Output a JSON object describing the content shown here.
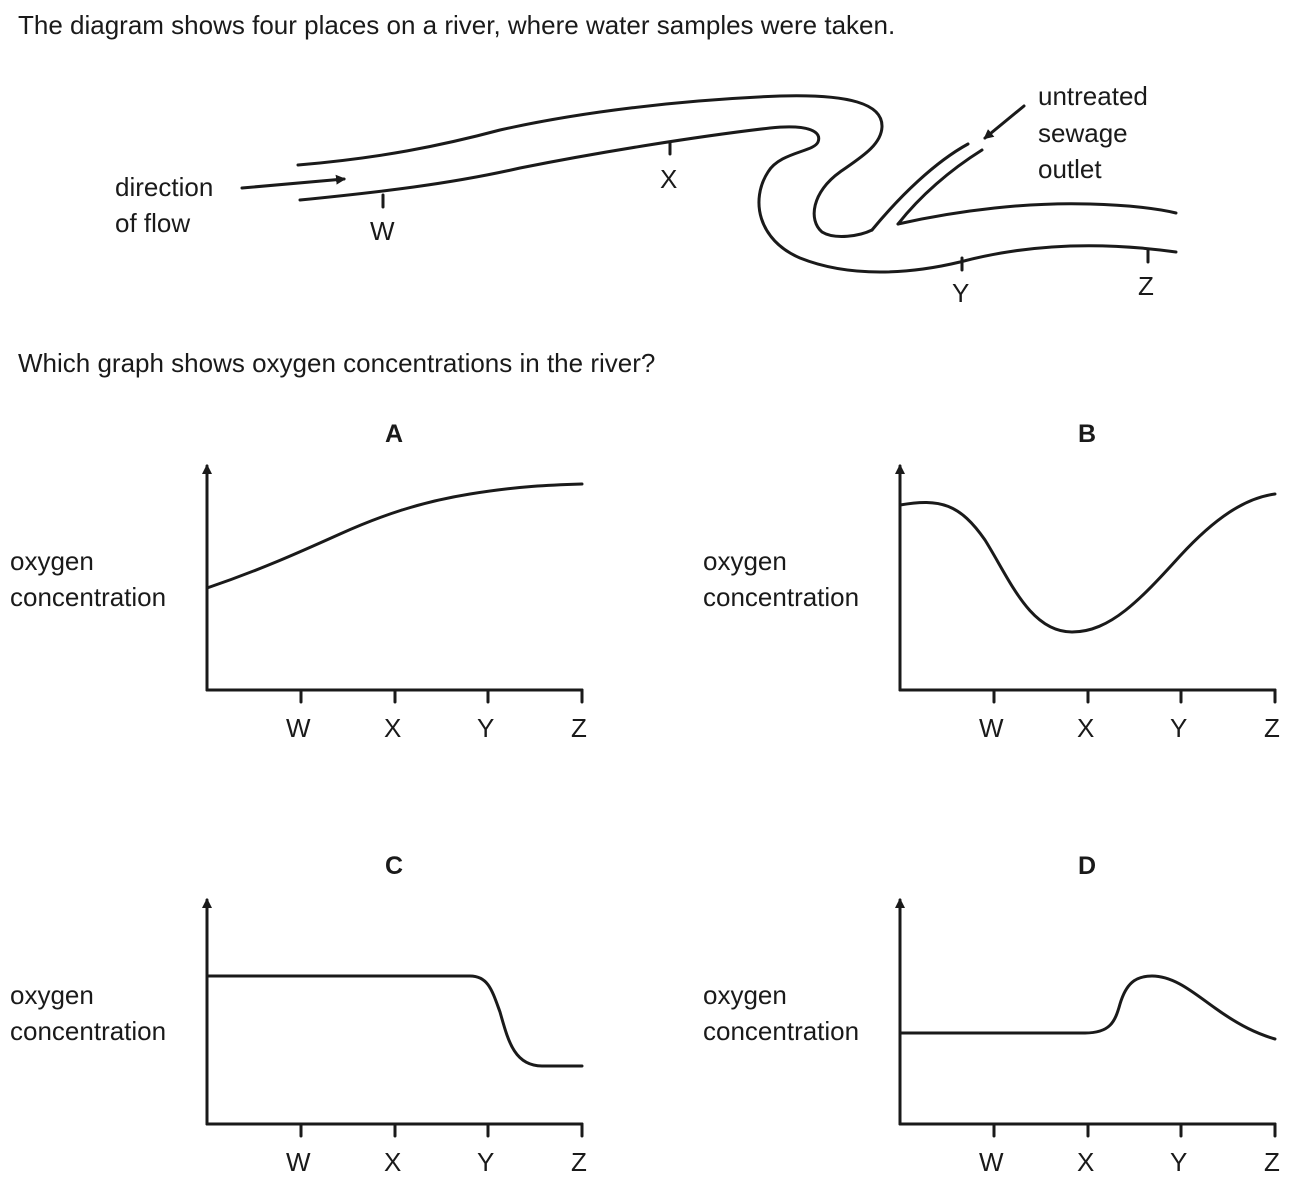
{
  "intro_text": "The diagram shows four places on a river, where water samples were taken.",
  "question_text": "Which graph shows oxygen concentrations in the river?",
  "diagram": {
    "flow_label_line1": "direction",
    "flow_label_line2": "of flow",
    "outlet_label_line1": "untreated",
    "outlet_label_line2": "sewage",
    "outlet_label_line3": "outlet",
    "site_w": "W",
    "site_x": "X",
    "site_y": "Y",
    "site_z": "Z"
  },
  "graphs": [
    {
      "option": "A",
      "ylabel_line1": "oxygen",
      "ylabel_line2": "concentration",
      "x_ticks": [
        "W",
        "X",
        "Y",
        "Z"
      ],
      "shape": "rising"
    },
    {
      "option": "B",
      "ylabel_line1": "oxygen",
      "ylabel_line2": "concentration",
      "x_ticks": [
        "W",
        "X",
        "Y",
        "Z"
      ],
      "shape": "dip-at-X"
    },
    {
      "option": "C",
      "ylabel_line1": "oxygen",
      "ylabel_line2": "concentration",
      "x_ticks": [
        "W",
        "X",
        "Y",
        "Z"
      ],
      "shape": "drop-after-Y"
    },
    {
      "option": "D",
      "ylabel_line1": "oxygen",
      "ylabel_line2": "concentration",
      "x_ticks": [
        "W",
        "X",
        "Y",
        "Z"
      ],
      "shape": "peak-near-Y"
    }
  ]
}
